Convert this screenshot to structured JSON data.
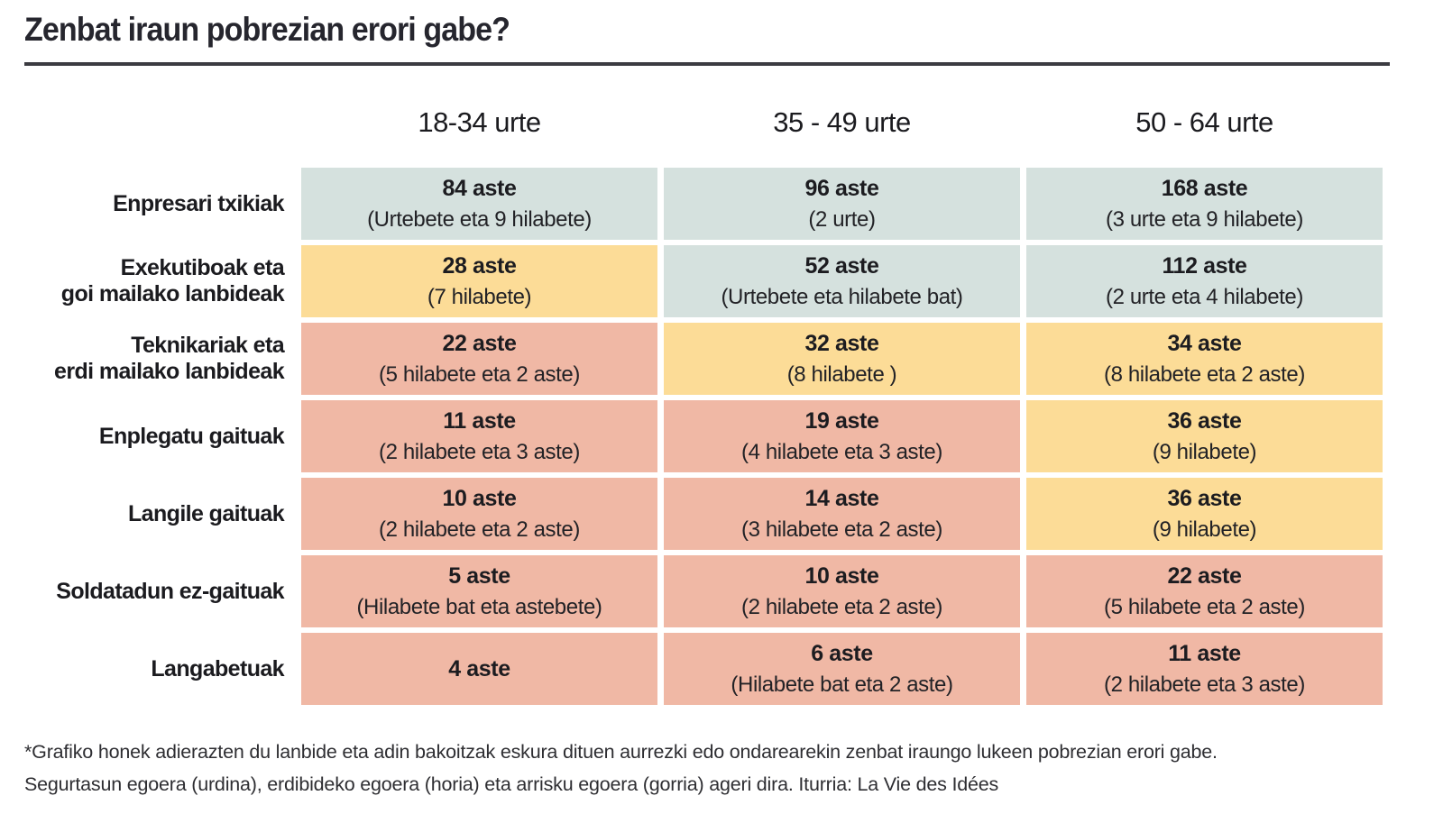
{
  "title": "Zenbat iraun pobrezian erori gabe?",
  "colors": {
    "secure": "#d5e1de",
    "middle": "#fcdc97",
    "risk": "#f0b8a5"
  },
  "footnote": {
    "line1": "*Grafiko honek adierazten du lanbide eta adin bakoitzak eskura dituen aurrezki edo ondarearekin zenbat iraungo lukeen pobrezian erori gabe.",
    "line2": "Segurtasun egoera (urdina), erdibideko egoera (horia) eta arrisku egoera (gorria) ageri dira. Iturria: La Vie des Idées"
  },
  "chart_data": {
    "type": "table",
    "title": "Zenbat iraun pobrezian erori gabe?",
    "unit": "aste (weeks)",
    "legend": {
      "secure": "Segurtasun egoera (urdina)",
      "middle": "Erdibideko egoera (horia)",
      "risk": "Arrisku egoera (gorria)"
    },
    "columns": [
      "18-34 urte",
      "35 - 49 urte",
      "50 - 64 urte"
    ],
    "rows": [
      {
        "label": "Enpresari txikiak",
        "cells": [
          {
            "weeks": 84,
            "weeks_label": "84 aste",
            "detail": "(Urtebete eta 9 hilabete)",
            "status": "secure"
          },
          {
            "weeks": 96,
            "weeks_label": "96 aste",
            "detail": "(2 urte)",
            "status": "secure"
          },
          {
            "weeks": 168,
            "weeks_label": "168 aste",
            "detail": "(3 urte eta 9 hilabete)",
            "status": "secure"
          }
        ]
      },
      {
        "label": "Exekutiboak eta\ngoi mailako lanbideak",
        "cells": [
          {
            "weeks": 28,
            "weeks_label": "28 aste",
            "detail": "(7 hilabete)",
            "status": "middle"
          },
          {
            "weeks": 52,
            "weeks_label": "52 aste",
            "detail": "(Urtebete eta hilabete bat)",
            "status": "secure"
          },
          {
            "weeks": 112,
            "weeks_label": "112 aste",
            "detail": "(2 urte eta 4 hilabete)",
            "status": "secure"
          }
        ]
      },
      {
        "label": "Teknikariak eta\nerdi mailako lanbideak",
        "cells": [
          {
            "weeks": 22,
            "weeks_label": "22 aste",
            "detail": "(5 hilabete eta 2 aste)",
            "status": "risk"
          },
          {
            "weeks": 32,
            "weeks_label": "32 aste",
            "detail": "(8 hilabete )",
            "status": "middle"
          },
          {
            "weeks": 34,
            "weeks_label": "34 aste",
            "detail": "(8 hilabete eta 2 aste)",
            "status": "middle"
          }
        ]
      },
      {
        "label": "Enplegatu gaituak",
        "cells": [
          {
            "weeks": 11,
            "weeks_label": "11 aste",
            "detail": "(2 hilabete eta 3 aste)",
            "status": "risk"
          },
          {
            "weeks": 19,
            "weeks_label": "19 aste",
            "detail": "(4 hilabete eta 3 aste)",
            "status": "risk"
          },
          {
            "weeks": 36,
            "weeks_label": "36 aste",
            "detail": "(9 hilabete)",
            "status": "middle"
          }
        ]
      },
      {
        "label": "Langile gaituak",
        "cells": [
          {
            "weeks": 10,
            "weeks_label": "10 aste",
            "detail": "(2 hilabete eta 2 aste)",
            "status": "risk"
          },
          {
            "weeks": 14,
            "weeks_label": "14 aste",
            "detail": "(3 hilabete eta 2 aste)",
            "status": "risk"
          },
          {
            "weeks": 36,
            "weeks_label": "36 aste",
            "detail": "(9 hilabete)",
            "status": "middle"
          }
        ]
      },
      {
        "label": "Soldatadun ez-gaituak",
        "cells": [
          {
            "weeks": 5,
            "weeks_label": "5 aste",
            "detail": "(Hilabete bat eta astebete)",
            "status": "risk"
          },
          {
            "weeks": 10,
            "weeks_label": "10 aste",
            "detail": "(2 hilabete eta 2 aste)",
            "status": "risk"
          },
          {
            "weeks": 22,
            "weeks_label": "22 aste",
            "detail": "(5 hilabete eta 2 aste)",
            "status": "risk"
          }
        ]
      },
      {
        "label": "Langabetuak",
        "cells": [
          {
            "weeks": 4,
            "weeks_label": "4 aste",
            "detail": "",
            "status": "risk"
          },
          {
            "weeks": 6,
            "weeks_label": "6 aste",
            "detail": "(Hilabete bat eta 2 aste)",
            "status": "risk"
          },
          {
            "weeks": 11,
            "weeks_label": "11 aste",
            "detail": "(2 hilabete eta 3 aste)",
            "status": "risk"
          }
        ]
      }
    ]
  }
}
